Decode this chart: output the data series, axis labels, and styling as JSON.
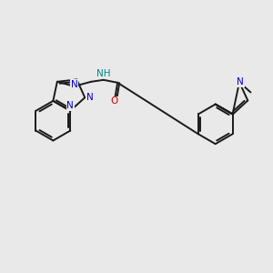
{
  "bg": "#e9e9e9",
  "bc": "#1a1a1a",
  "nc": "#0000cc",
  "oc": "#cc0000",
  "nhc": "#008888",
  "bw": 1.4,
  "fs": 7.5,
  "xlim": [
    -1.0,
    11.0
  ],
  "ylim": [
    2.5,
    8.5
  ]
}
